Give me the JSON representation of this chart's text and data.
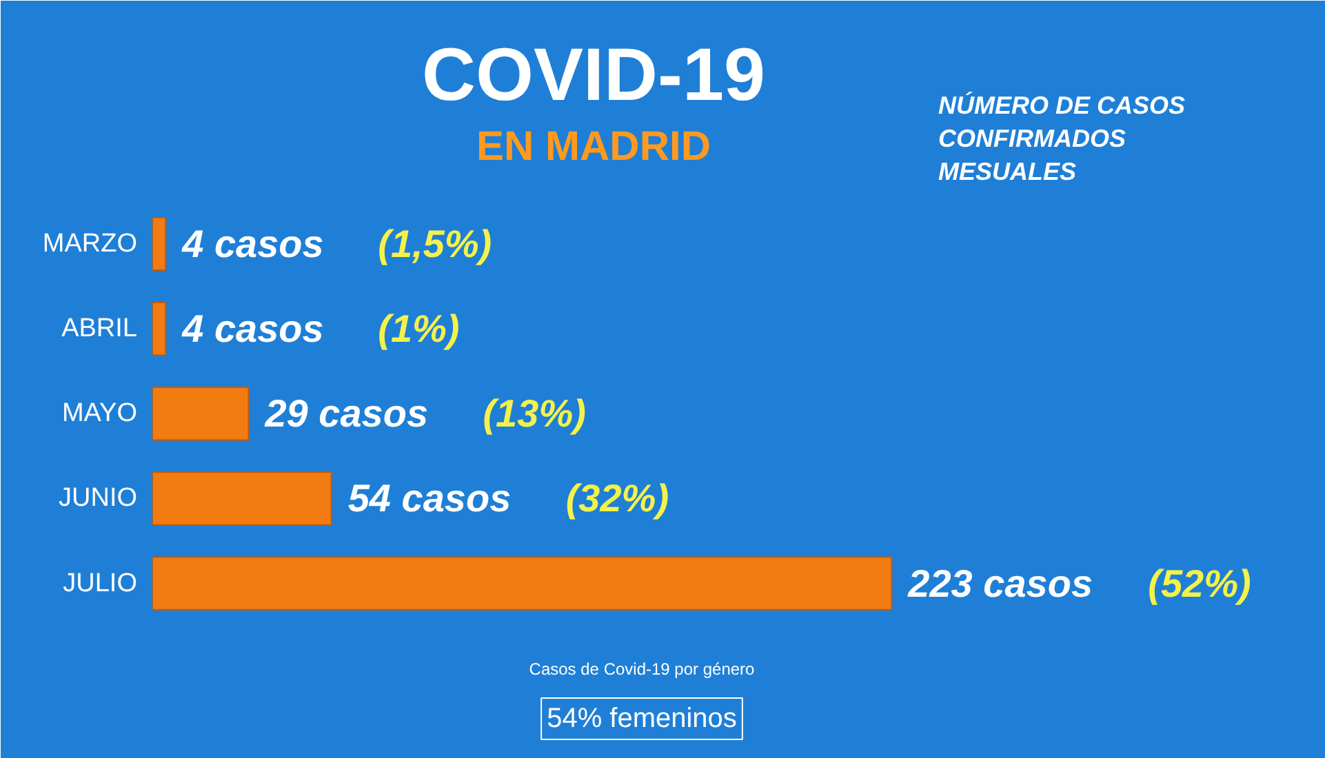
{
  "chart_data": {
    "type": "bar",
    "orientation": "horizontal",
    "title": "COVID-19",
    "subtitle": "EN MADRID",
    "categories": [
      "MARZO",
      "ABRIL",
      "MAYO",
      "JUNIO",
      "JULIO"
    ],
    "values": [
      4,
      4,
      29,
      54,
      223
    ],
    "color": "#f27b12",
    "value_labels": [
      "4 casos",
      "4 casos",
      "29 casos",
      "54 casos",
      "223 casos"
    ],
    "annotations": [
      "NÚMERO DE CASOS\nCONFIRMADOS\nMESUALES",
      "(1,5%)",
      "(1%)",
      "(13%)",
      "(32%)",
      "(52%)",
      "Casos de Covid-19 por género",
      "54% femeninos"
    ],
    "grid": false
  }
}
